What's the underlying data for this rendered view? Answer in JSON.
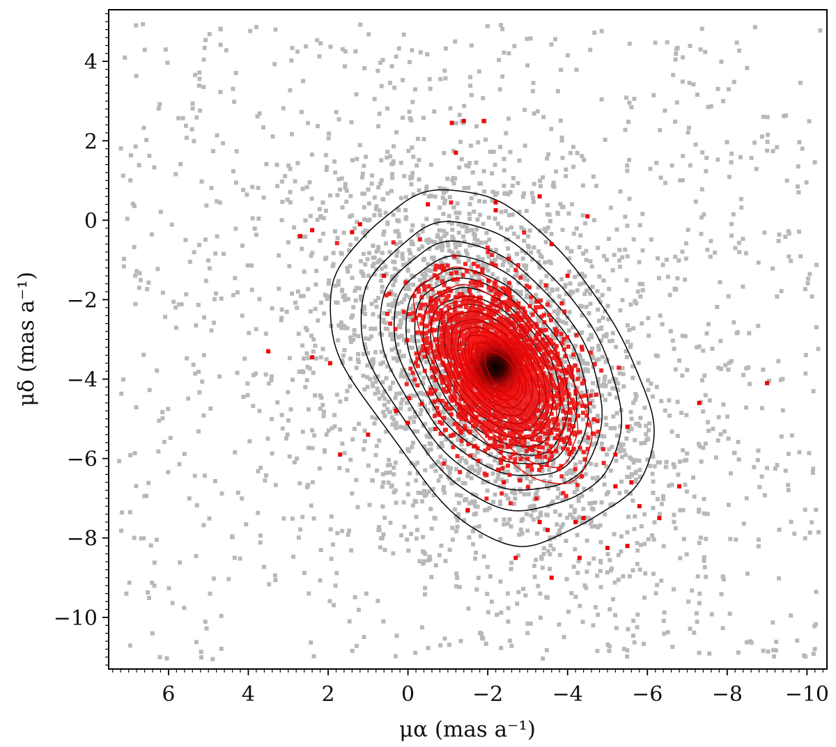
{
  "chart_data": {
    "type": "scatter",
    "title": "",
    "xlabel": "μα (mas a⁻¹)",
    "ylabel": "μδ (mas a⁻¹)",
    "xlim": [
      7.5,
      -10.5
    ],
    "ylim": [
      -11.3,
      5.3
    ],
    "x_inverted": true,
    "xticks": [
      6,
      4,
      2,
      0,
      -2,
      -4,
      -6,
      -8,
      -10
    ],
    "xtick_labels": [
      "6",
      "4",
      "2",
      "0",
      "−2",
      "−4",
      "−6",
      "−8",
      "−10"
    ],
    "yticks": [
      4,
      2,
      0,
      -2,
      -4,
      -6,
      -8,
      -10
    ],
    "ytick_labels": [
      "4",
      "2",
      "0",
      "−2",
      "−4",
      "−6",
      "−8",
      "−10"
    ],
    "grid": false,
    "legend": "none",
    "colors": {
      "field": "#b8b8b8",
      "members": "#ee0000",
      "field_contours": "#000000",
      "member_contours": "#dd0000",
      "core": "#000000"
    },
    "series": [
      {
        "role": "field stars (gray)",
        "marker": "square",
        "distribution": {
          "center": [
            -2.1,
            -3.6
          ],
          "extent_x": [
            7.3,
            -10.3
          ],
          "extent_y": [
            -11.0,
            5.0
          ],
          "count": 5000
        }
      },
      {
        "role": "cluster members (red)",
        "marker": "square",
        "center": [
          -2.2,
          -3.7
        ],
        "outliers": [
          [
            -1.9,
            2.5
          ],
          [
            -1.4,
            2.5
          ],
          [
            -1.1,
            2.45
          ],
          [
            -1.2,
            1.7
          ],
          [
            -3.3,
            0.6
          ],
          [
            -2.2,
            0.45
          ],
          [
            -2.2,
            0.25
          ],
          [
            -4.5,
            0.1
          ],
          [
            -0.5,
            0.4
          ],
          [
            2.4,
            -0.25
          ],
          [
            2.7,
            -0.4
          ],
          [
            1.2,
            -0.1
          ],
          [
            1.4,
            -0.3
          ],
          [
            0.6,
            -1.4
          ],
          [
            3.5,
            -3.3
          ],
          [
            2.4,
            -3.45
          ],
          [
            1.95,
            -3.6
          ],
          [
            0.3,
            -4.8
          ],
          [
            0.0,
            -5.1
          ],
          [
            1.7,
            -5.9
          ],
          [
            1.0,
            -5.4
          ],
          [
            -7.3,
            -4.6
          ],
          [
            -9.0,
            -4.1
          ],
          [
            -6.8,
            -6.7
          ],
          [
            -6.3,
            -7.5
          ],
          [
            -5.8,
            -7.2
          ],
          [
            -5.5,
            -8.2
          ],
          [
            -5.0,
            -8.25
          ],
          [
            -4.3,
            -8.5
          ],
          [
            -3.6,
            -9.0
          ],
          [
            -2.7,
            -8.5
          ],
          [
            -2.4,
            -6.6
          ],
          [
            -1.5,
            -7.3
          ],
          [
            -3.3,
            -7.6
          ],
          [
            -3.5,
            -7.8
          ],
          [
            -4.2,
            -7.6
          ],
          [
            -4.4,
            -7.5
          ],
          [
            -5.2,
            -6.7
          ],
          [
            -5.6,
            -6.6
          ],
          [
            -5.2,
            -5.9
          ],
          [
            -5.5,
            -5.2
          ],
          [
            -4.0,
            -1.4
          ],
          [
            -3.6,
            -0.6
          ]
        ]
      }
    ],
    "contours_field": {
      "center": [
        -2.1,
        -3.7
      ],
      "levels": [
        {
          "ax": 3.1,
          "bx": 4.6,
          "sharpness": 2.8
        },
        {
          "ax": 2.6,
          "bx": 3.85,
          "sharpness": 2.4
        },
        {
          "ax": 2.25,
          "bx": 3.4,
          "sharpness": 2.2
        },
        {
          "ax": 1.98,
          "bx": 3.05,
          "sharpness": 2.1
        },
        {
          "ax": 1.75,
          "bx": 2.75,
          "sharpness": 2.0
        },
        {
          "ax": 1.55,
          "bx": 2.5,
          "sharpness": 2.0
        },
        {
          "ax": 1.37,
          "bx": 2.25,
          "sharpness": 2.0
        },
        {
          "ax": 1.21,
          "bx": 2.02,
          "sharpness": 2.0
        },
        {
          "ax": 1.06,
          "bx": 1.8,
          "sharpness": 2.0
        },
        {
          "ax": 0.92,
          "bx": 1.6,
          "sharpness": 2.0
        },
        {
          "ax": 0.78,
          "bx": 1.38,
          "sharpness": 2.0
        },
        {
          "ax": 0.64,
          "bx": 1.16,
          "sharpness": 2.0
        },
        {
          "ax": 0.5,
          "bx": 0.94,
          "sharpness": 2.0
        },
        {
          "ax": 0.36,
          "bx": 0.72,
          "sharpness": 2.0
        }
      ]
    },
    "contours_members": {
      "center": [
        -2.4,
        -3.9
      ],
      "levels": [
        {
          "ax": 1.35,
          "bx": 3.1,
          "sharpness": 2.4
        },
        {
          "ax": 1.15,
          "bx": 2.65,
          "sharpness": 2.2
        },
        {
          "ax": 1.0,
          "bx": 2.25,
          "sharpness": 2.0
        },
        {
          "ax": 0.86,
          "bx": 1.92,
          "sharpness": 2.0
        },
        {
          "ax": 0.72,
          "bx": 1.6,
          "sharpness": 2.0
        },
        {
          "ax": 0.58,
          "bx": 1.3,
          "sharpness": 2.0
        },
        {
          "ax": 0.44,
          "bx": 1.0,
          "sharpness": 2.0
        },
        {
          "ax": 0.3,
          "bx": 0.7,
          "sharpness": 2.0
        }
      ]
    }
  }
}
